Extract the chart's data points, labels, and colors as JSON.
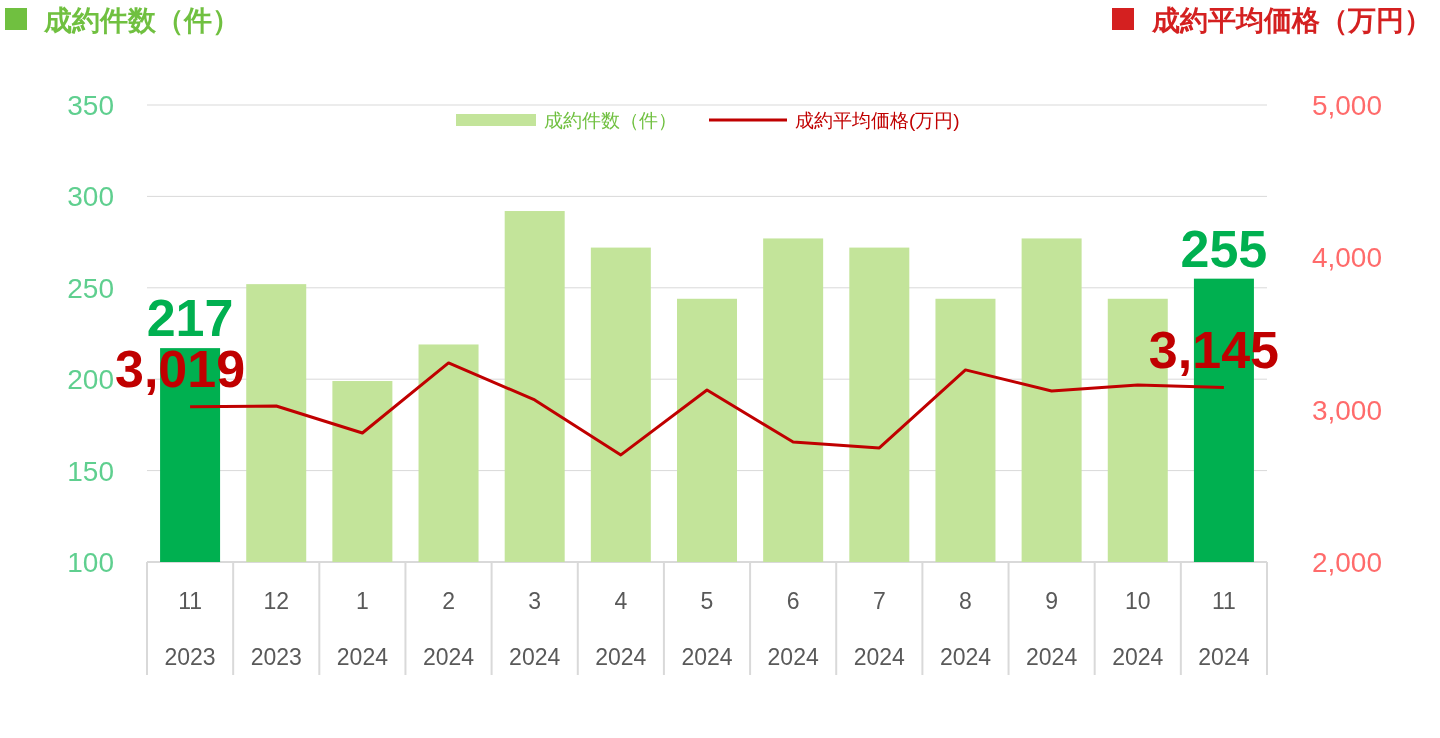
{
  "chart_data": {
    "type": "bar",
    "ylabel": "成約件数（件）",
    "y2label": "成約平均価格（万円）",
    "categories": [
      "11\n2023",
      "12\n2023",
      "1\n2024",
      "2\n2024",
      "3\n2024",
      "4\n2024",
      "5\n2024",
      "6\n2024",
      "7\n2024",
      "8\n2024",
      "9\n2024",
      "10\n2024",
      "11\n2024"
    ],
    "ylim": [
      100,
      350
    ],
    "yticks": [
      100,
      150,
      200,
      250,
      300,
      350
    ],
    "y2lim": [
      2000,
      5000
    ],
    "y2ticks": [
      {
        "value": 2000,
        "label": "2,000"
      },
      {
        "value": 3000,
        "label": "3,000"
      },
      {
        "value": 4000,
        "label": "4,000"
      },
      {
        "value": 5000,
        "label": "5,000"
      }
    ],
    "grid": "y",
    "legend": "top",
    "series": [
      {
        "name": "成約件数（件）",
        "color": "#c3e49a",
        "colors": [
          "#00b050",
          "#c3e49a",
          "#c3e49a",
          "#c3e49a",
          "#c3e49a",
          "#c3e49a",
          "#c3e49a",
          "#c3e49a",
          "#c3e49a",
          "#c3e49a",
          "#c3e49a",
          "#c3e49a",
          "#00b050"
        ],
        "values": [
          217,
          252,
          199,
          219,
          292,
          272,
          244,
          277,
          272,
          244,
          277,
          244,
          255
        ],
        "value_labels": [
          "217",
          null,
          null,
          null,
          null,
          null,
          null,
          null,
          null,
          null,
          null,
          null,
          "255"
        ]
      },
      {
        "type": "line",
        "name": "成約平均価格(万円)",
        "axis": "y2",
        "color": "#c00000",
        "values": [
          3019,
          3024,
          2847,
          3307,
          3064,
          2703,
          3129,
          2788,
          2749,
          3261,
          3123,
          3162,
          3145
        ],
        "value_labels": [
          "3,019",
          null,
          null,
          null,
          null,
          null,
          null,
          null,
          null,
          null,
          null,
          null,
          "3,145"
        ]
      }
    ]
  }
}
